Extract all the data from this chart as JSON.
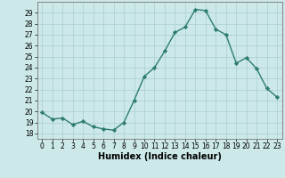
{
  "x": [
    0,
    1,
    2,
    3,
    4,
    5,
    6,
    7,
    8,
    9,
    10,
    11,
    12,
    13,
    14,
    15,
    16,
    17,
    18,
    19,
    20,
    21,
    22,
    23
  ],
  "y": [
    19.9,
    19.3,
    19.4,
    18.8,
    19.1,
    18.6,
    18.4,
    18.3,
    19.0,
    21.0,
    23.2,
    24.0,
    25.5,
    27.2,
    27.7,
    29.3,
    29.2,
    27.5,
    27.0,
    24.4,
    24.9,
    23.9,
    22.1,
    21.3
  ],
  "line_color": "#2d7d6e",
  "marker": "D",
  "marker_size": 2.2,
  "bg_color": "#cce8e8",
  "grid_color": "#aacfcf",
  "xlabel": "Humidex (Indice chaleur)",
  "ylim": [
    17.5,
    30.0
  ],
  "xlim": [
    -0.5,
    23.5
  ],
  "yticks": [
    18,
    19,
    20,
    21,
    22,
    23,
    24,
    25,
    26,
    27,
    28,
    29
  ],
  "xticks": [
    0,
    1,
    2,
    3,
    4,
    5,
    6,
    7,
    8,
    9,
    10,
    11,
    12,
    13,
    14,
    15,
    16,
    17,
    18,
    19,
    20,
    21,
    22,
    23
  ],
  "tick_fontsize": 5.5,
  "xlabel_fontsize": 7.0,
  "line_width": 1.0
}
